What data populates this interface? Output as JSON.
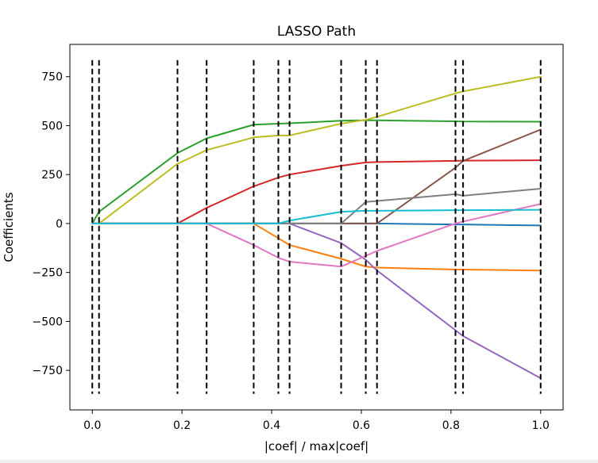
{
  "chart_data": {
    "type": "line",
    "title": "LASSO Path",
    "xlabel": "|coef| / max|coef|",
    "ylabel": "Coefficients",
    "xlim": [
      -0.05,
      1.05
    ],
    "ylim": [
      -952,
      915
    ],
    "xticks": [
      0.0,
      0.2,
      0.4,
      0.6,
      0.8,
      1.0
    ],
    "xtick_labels": [
      "0.0",
      "0.2",
      "0.4",
      "0.6",
      "0.8",
      "1.0"
    ],
    "yticks": [
      750,
      500,
      250,
      0,
      -250,
      -500,
      -750
    ],
    "ytick_labels": [
      "750",
      "500",
      "250",
      "0",
      "−250",
      "−500",
      "−750"
    ],
    "grid": false,
    "vlines": {
      "x": [
        0.0,
        0.015,
        0.19,
        0.255,
        0.36,
        0.415,
        0.44,
        0.555,
        0.61,
        0.635,
        0.81,
        0.827,
        1.0
      ],
      "ymin": -870,
      "ymax": 835,
      "color": "#000000",
      "style": "dashed"
    },
    "series": [
      {
        "color": "#1f77b4",
        "x": [
          0.0,
          0.015,
          0.19,
          0.255,
          0.36,
          0.415,
          0.44,
          0.555,
          0.61,
          0.635,
          0.81,
          0.827,
          1.0
        ],
        "y": [
          0,
          0,
          0,
          0,
          0,
          0,
          0,
          0,
          0,
          0,
          -5,
          -5,
          -10
        ]
      },
      {
        "color": "#ff7f0e",
        "x": [
          0.0,
          0.015,
          0.19,
          0.255,
          0.36,
          0.415,
          0.44,
          0.555,
          0.61,
          0.635,
          0.81,
          0.827,
          1.0
        ],
        "y": [
          0,
          0,
          0,
          0,
          0,
          -75,
          -110,
          -180,
          -220,
          -225,
          -235,
          -235,
          -240
        ]
      },
      {
        "color": "#2ca02c",
        "x": [
          0.0,
          0.015,
          0.19,
          0.255,
          0.36,
          0.415,
          0.44,
          0.555,
          0.61,
          0.635,
          0.81,
          0.827,
          1.0
        ],
        "y": [
          0,
          60,
          360,
          435,
          505,
          510,
          512,
          525,
          527,
          527,
          522,
          521,
          520
        ]
      },
      {
        "color": "#d62728",
        "x": [
          0.0,
          0.015,
          0.19,
          0.255,
          0.36,
          0.415,
          0.44,
          0.555,
          0.61,
          0.635,
          0.81,
          0.827,
          1.0
        ],
        "y": [
          0,
          0,
          0,
          80,
          190,
          235,
          250,
          295,
          312,
          314,
          320,
          321,
          323
        ]
      },
      {
        "color": "#9467bd",
        "x": [
          0.0,
          0.015,
          0.19,
          0.255,
          0.36,
          0.415,
          0.44,
          0.555,
          0.61,
          0.635,
          0.81,
          0.827,
          1.0
        ],
        "y": [
          0,
          0,
          0,
          0,
          0,
          0,
          0,
          -100,
          -185,
          -240,
          -545,
          -575,
          -790
        ]
      },
      {
        "color": "#8c564b",
        "x": [
          0.0,
          0.015,
          0.19,
          0.255,
          0.36,
          0.415,
          0.44,
          0.555,
          0.61,
          0.635,
          0.81,
          0.827,
          1.0
        ],
        "y": [
          0,
          0,
          0,
          0,
          0,
          0,
          0,
          0,
          0,
          0,
          285,
          320,
          480
        ]
      },
      {
        "color": "#e377c2",
        "x": [
          0.0,
          0.015,
          0.19,
          0.255,
          0.36,
          0.415,
          0.44,
          0.555,
          0.61,
          0.635,
          0.81,
          0.827,
          1.0
        ],
        "y": [
          0,
          0,
          0,
          0,
          -110,
          -175,
          -195,
          -220,
          -165,
          -140,
          0,
          10,
          100
        ]
      },
      {
        "color": "#7f7f7f",
        "x": [
          0.0,
          0.015,
          0.19,
          0.255,
          0.36,
          0.415,
          0.44,
          0.555,
          0.61,
          0.635,
          0.81,
          0.827,
          1.0
        ],
        "y": [
          0,
          0,
          0,
          0,
          0,
          0,
          0,
          0,
          110,
          115,
          150,
          142,
          178
        ]
      },
      {
        "color": "#bcbd22",
        "x": [
          0.0,
          0.015,
          0.19,
          0.255,
          0.36,
          0.415,
          0.44,
          0.555,
          0.61,
          0.635,
          0.81,
          0.827,
          1.0
        ],
        "y": [
          0,
          0,
          305,
          375,
          440,
          450,
          450,
          510,
          530,
          545,
          665,
          675,
          750
        ]
      },
      {
        "color": "#17becf",
        "x": [
          0.0,
          0.015,
          0.19,
          0.255,
          0.36,
          0.415,
          0.44,
          0.555,
          0.61,
          0.635,
          0.81,
          0.827,
          1.0
        ],
        "y": [
          0,
          0,
          0,
          0,
          0,
          0,
          15,
          60,
          65,
          65,
          68,
          68,
          70
        ]
      }
    ]
  }
}
